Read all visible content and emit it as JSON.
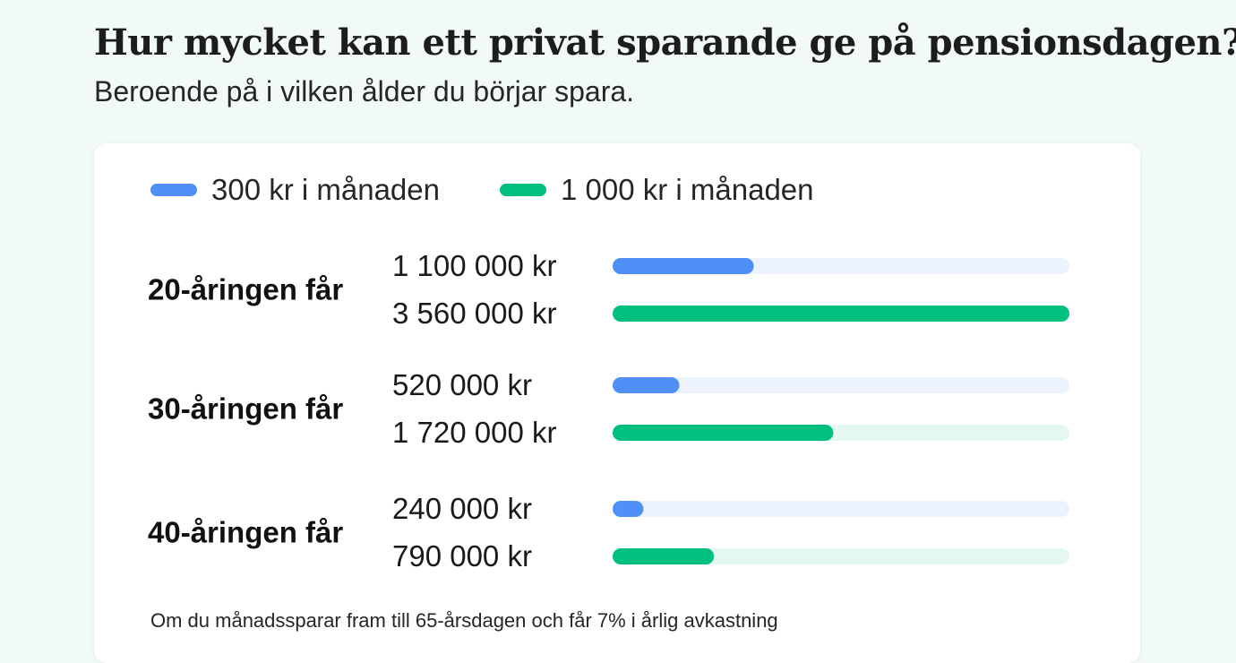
{
  "header": {
    "title": "Hur mycket kan ett privat sparande ge på pensionsdagen?",
    "subtitle": "Beroende på i vilken ålder du börjar spara."
  },
  "footnote": "Om du månadssparar fram till 65-årsdagen och får 7% i årlig avkastning",
  "colors": {
    "series_300": "#4f8ff6",
    "series_1000": "#00c07e",
    "track_300": "#edf3fe",
    "track_1000": "#e5f8f0"
  },
  "chart_data": {
    "type": "bar",
    "orientation": "horizontal",
    "categories": [
      "20-åringen får",
      "30-åringen får",
      "40-åringen får"
    ],
    "series": [
      {
        "name": "300 kr i månaden",
        "values": [
          1100000,
          520000,
          240000
        ],
        "labels": [
          "1 100 000 kr",
          "520 000 kr",
          "240 000 kr"
        ]
      },
      {
        "name": "1 000 kr i månaden",
        "values": [
          3560000,
          1720000,
          790000
        ],
        "labels": [
          "3 560 000 kr",
          "1 720 000 kr",
          "790 000 kr"
        ]
      }
    ],
    "xlim": [
      0,
      3560000
    ],
    "grid": false,
    "legend_position": "top-left"
  }
}
